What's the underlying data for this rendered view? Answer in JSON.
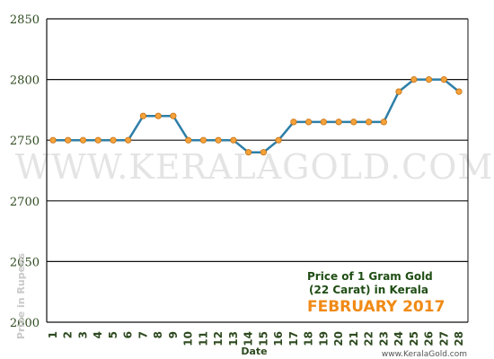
{
  "chart_data": {
    "type": "line",
    "title_line1": "Price of 1 Gram Gold",
    "title_line2": "(22 Carat) in Kerala",
    "title_month": "FEBRUARY 2017",
    "xlabel": "Date",
    "ylabel": "Price in Rupees",
    "watermark": "WWW.KERALAGOLD.COM",
    "credit": "www.KeralaGold.com",
    "x": [
      1,
      2,
      3,
      4,
      5,
      6,
      7,
      8,
      9,
      10,
      11,
      12,
      13,
      14,
      15,
      16,
      17,
      18,
      19,
      20,
      21,
      22,
      23,
      24,
      25,
      26,
      27,
      28
    ],
    "series": [
      {
        "values": [
          2750,
          2750,
          2750,
          2750,
          2750,
          2750,
          2770,
          2770,
          2770,
          2750,
          2750,
          2750,
          2750,
          2740,
          2740,
          2750,
          2765,
          2765,
          2765,
          2765,
          2765,
          2765,
          2765,
          2790,
          2800,
          2800,
          2800,
          2790
        ]
      }
    ],
    "yticks": [
      2600,
      2650,
      2700,
      2750,
      2800,
      2850
    ],
    "ylim": [
      2600,
      2850
    ],
    "grid": true,
    "line_color": "#2e7fa8",
    "marker_color": "#f4a23a",
    "grid_color": "#111111"
  }
}
